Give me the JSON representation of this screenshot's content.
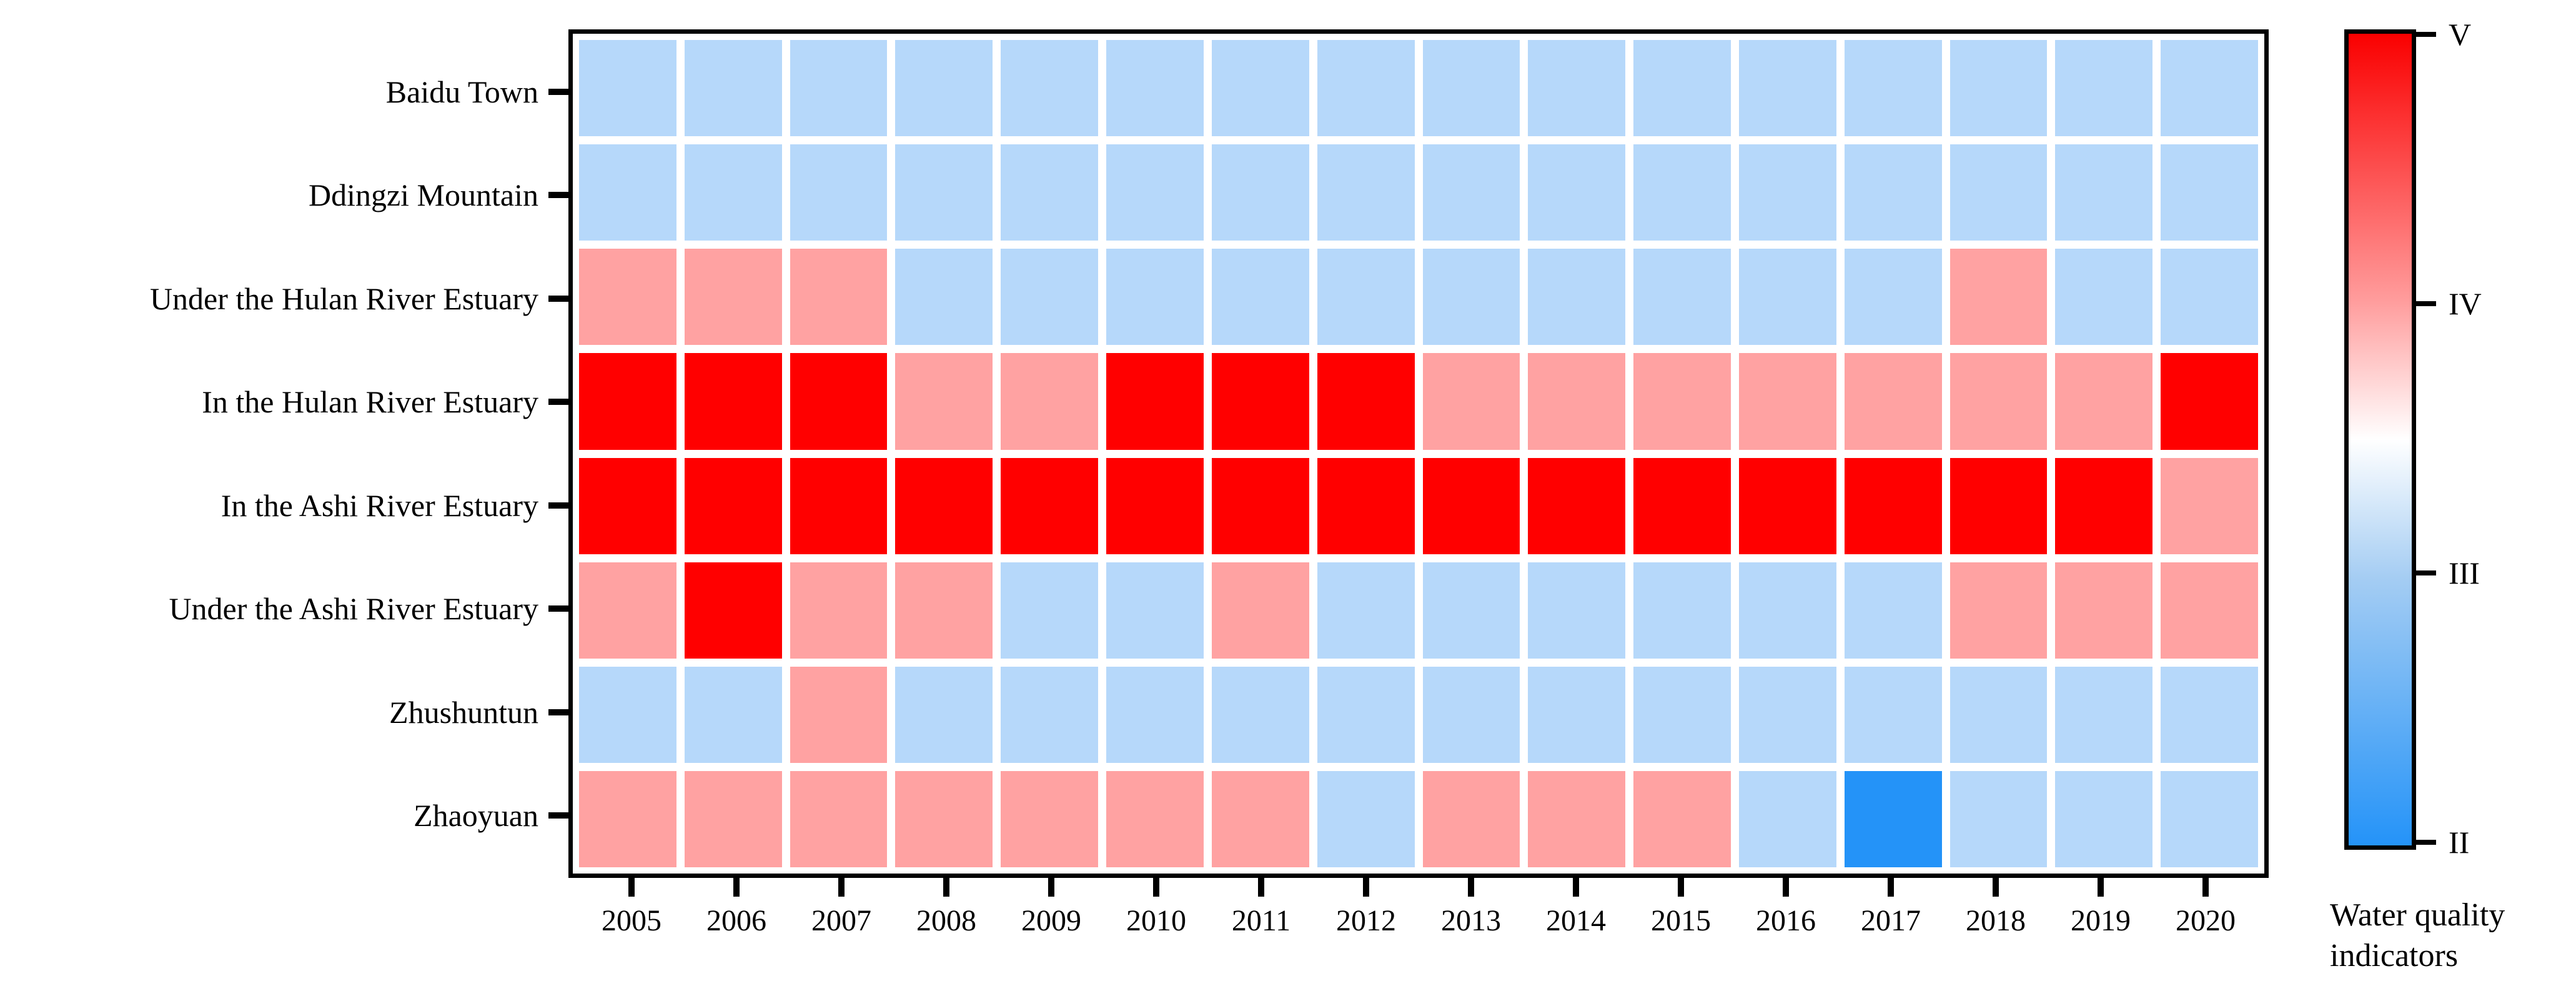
{
  "chart_data": {
    "type": "heatmap",
    "x_categories": [
      "2005",
      "2006",
      "2007",
      "2008",
      "2009",
      "2010",
      "2011",
      "2012",
      "2013",
      "2014",
      "2015",
      "2016",
      "2017",
      "2018",
      "2019",
      "2020"
    ],
    "y_categories": [
      "Baidu Town",
      "Ddingzi Mountain",
      "Under the Hulan River Estuary",
      "In the Hulan River Estuary",
      "In the Ashi River Estuary",
      "Under the Ashi River Estuary",
      "Zhushuntun",
      "Zhaoyuan"
    ],
    "grid": [
      [
        "III",
        "III",
        "III",
        "III",
        "III",
        "III",
        "III",
        "III",
        "III",
        "III",
        "III",
        "III",
        "III",
        "III",
        "III",
        "III"
      ],
      [
        "III",
        "III",
        "III",
        "III",
        "III",
        "III",
        "III",
        "III",
        "III",
        "III",
        "III",
        "III",
        "III",
        "III",
        "III",
        "III"
      ],
      [
        "IV",
        "IV",
        "IV",
        "III",
        "III",
        "III",
        "III",
        "III",
        "III",
        "III",
        "III",
        "III",
        "III",
        "IV",
        "III",
        "III"
      ],
      [
        "V",
        "V",
        "V",
        "IV",
        "IV",
        "V",
        "V",
        "V",
        "IV",
        "IV",
        "IV",
        "IV",
        "IV",
        "IV",
        "IV",
        "V"
      ],
      [
        "V",
        "V",
        "V",
        "V",
        "V",
        "V",
        "V",
        "V",
        "V",
        "V",
        "V",
        "V",
        "V",
        "V",
        "V",
        "IV"
      ],
      [
        "IV",
        "V",
        "IV",
        "IV",
        "III",
        "III",
        "IV",
        "III",
        "III",
        "III",
        "III",
        "III",
        "III",
        "IV",
        "IV",
        "IV"
      ],
      [
        "III",
        "III",
        "IV",
        "III",
        "III",
        "III",
        "III",
        "III",
        "III",
        "III",
        "III",
        "III",
        "III",
        "III",
        "III",
        "III"
      ],
      [
        "IV",
        "IV",
        "IV",
        "IV",
        "IV",
        "IV",
        "IV",
        "III",
        "IV",
        "IV",
        "IV",
        "III",
        "II",
        "III",
        "III",
        "III"
      ]
    ],
    "palette": {
      "V": "#FF0000",
      "IV": "#FFA2A2",
      "III": "#B6D8FA",
      "II": "#2493F8"
    },
    "legend": {
      "title": "Water quality indicators",
      "title_lines": [
        "Water quality",
        "indicators"
      ],
      "ticks": [
        "V",
        "IV",
        "III",
        "II"
      ],
      "gradient_stops": [
        {
          "color": "#FA0000",
          "pos": 0
        },
        {
          "color": "#FF9D9D",
          "pos": 33
        },
        {
          "color": "#FFFFFF",
          "pos": 50
        },
        {
          "color": "#A5CDF3",
          "pos": 67
        },
        {
          "color": "#2493F8",
          "pos": 100
        }
      ]
    },
    "layout": {
      "grid_on": false,
      "legend_position": "right",
      "axis_color": "#000000"
    }
  }
}
